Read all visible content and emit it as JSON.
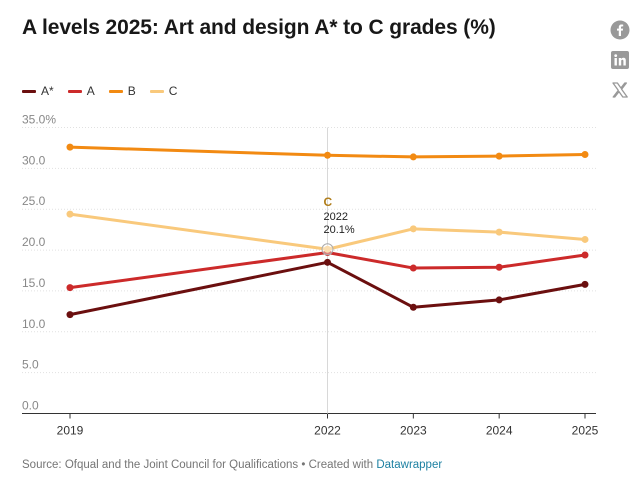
{
  "title": "A levels 2025: Art and design A* to C grades (%)",
  "social": [
    {
      "name": "facebook-icon"
    },
    {
      "name": "linkedin-icon"
    },
    {
      "name": "x-icon"
    }
  ],
  "footer": {
    "source": "Source: Ofqual and the Joint Council for Qualifications",
    "separator": " • ",
    "created_with": "Created with",
    "tool": "Datawrapper"
  },
  "chart_data": {
    "type": "line",
    "x": [
      2019,
      2022,
      2023,
      2024,
      2025
    ],
    "series": [
      {
        "name": "A*",
        "color": "#6b0f0f",
        "values": [
          12.1,
          18.5,
          13.0,
          13.9,
          15.8
        ]
      },
      {
        "name": "A",
        "color": "#cc2a2a",
        "values": [
          15.4,
          19.7,
          17.8,
          17.9,
          19.4
        ]
      },
      {
        "name": "B",
        "color": "#f28a12",
        "values": [
          32.6,
          31.6,
          31.4,
          31.5,
          31.7
        ]
      },
      {
        "name": "C",
        "color": "#f9c97c",
        "values": [
          24.4,
          20.1,
          22.6,
          22.2,
          21.3
        ]
      }
    ],
    "ylim": [
      0,
      35
    ],
    "yticks": [
      "35.0%",
      "30.0",
      "25.0",
      "20.0",
      "15.0",
      "10.0",
      "5.0",
      "0.0"
    ],
    "xticks": [
      "2019",
      "2022",
      "2023",
      "2024",
      "2025"
    ],
    "grid": true,
    "legend": "top-left",
    "tooltip": {
      "series": "C",
      "label": "C",
      "x": "2022",
      "value": "20.1%"
    }
  }
}
